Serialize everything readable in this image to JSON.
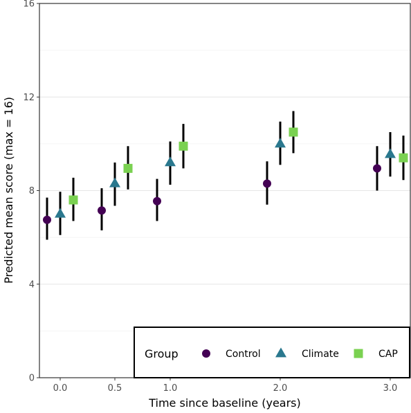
{
  "chart_data": {
    "type": "scatter",
    "xlabel": "Time since baseline (years)",
    "ylabel": "Predicted mean score (max = 16)",
    "x_ticks": [
      "0.0",
      "0.5",
      "1.0",
      "2.0",
      "3.0"
    ],
    "y_ticks": [
      "0",
      "4",
      "8",
      "12",
      "16"
    ],
    "ylim": [
      0,
      16
    ],
    "grid": "horizontal major and minor",
    "legend": {
      "title": "Group",
      "position": "bottom-right",
      "items": [
        "Control",
        "Climate",
        "CAP"
      ]
    },
    "series": [
      {
        "name": "Control",
        "marker": "circle",
        "color": "#440154",
        "points": [
          {
            "x": "0.0",
            "y": 6.75,
            "lower": 5.9,
            "upper": 7.7
          },
          {
            "x": "0.5",
            "y": 7.15,
            "lower": 6.3,
            "upper": 8.1
          },
          {
            "x": "1.0",
            "y": 7.55,
            "lower": 6.7,
            "upper": 8.5
          },
          {
            "x": "2.0",
            "y": 8.3,
            "lower": 7.4,
            "upper": 9.25
          },
          {
            "x": "3.0",
            "y": 8.95,
            "lower": 8.0,
            "upper": 9.9
          }
        ]
      },
      {
        "name": "Climate",
        "marker": "triangle",
        "color": "#2a788e",
        "points": [
          {
            "x": "0.0",
            "y": 7.0,
            "lower": 6.1,
            "upper": 7.95
          },
          {
            "x": "0.5",
            "y": 8.3,
            "lower": 7.35,
            "upper": 9.2
          },
          {
            "x": "1.0",
            "y": 9.2,
            "lower": 8.25,
            "upper": 10.1
          },
          {
            "x": "2.0",
            "y": 10.0,
            "lower": 9.1,
            "upper": 10.95
          },
          {
            "x": "3.0",
            "y": 9.55,
            "lower": 8.6,
            "upper": 10.5
          }
        ]
      },
      {
        "name": "CAP",
        "marker": "square",
        "color": "#7ad151",
        "points": [
          {
            "x": "0.0",
            "y": 7.6,
            "lower": 6.7,
            "upper": 8.55
          },
          {
            "x": "0.5",
            "y": 8.95,
            "lower": 8.05,
            "upper": 9.9
          },
          {
            "x": "1.0",
            "y": 9.9,
            "lower": 8.95,
            "upper": 10.85
          },
          {
            "x": "2.0",
            "y": 10.5,
            "lower": 9.6,
            "upper": 11.4
          },
          {
            "x": "3.0",
            "y": 9.4,
            "lower": 8.45,
            "upper": 10.35
          }
        ]
      }
    ]
  }
}
